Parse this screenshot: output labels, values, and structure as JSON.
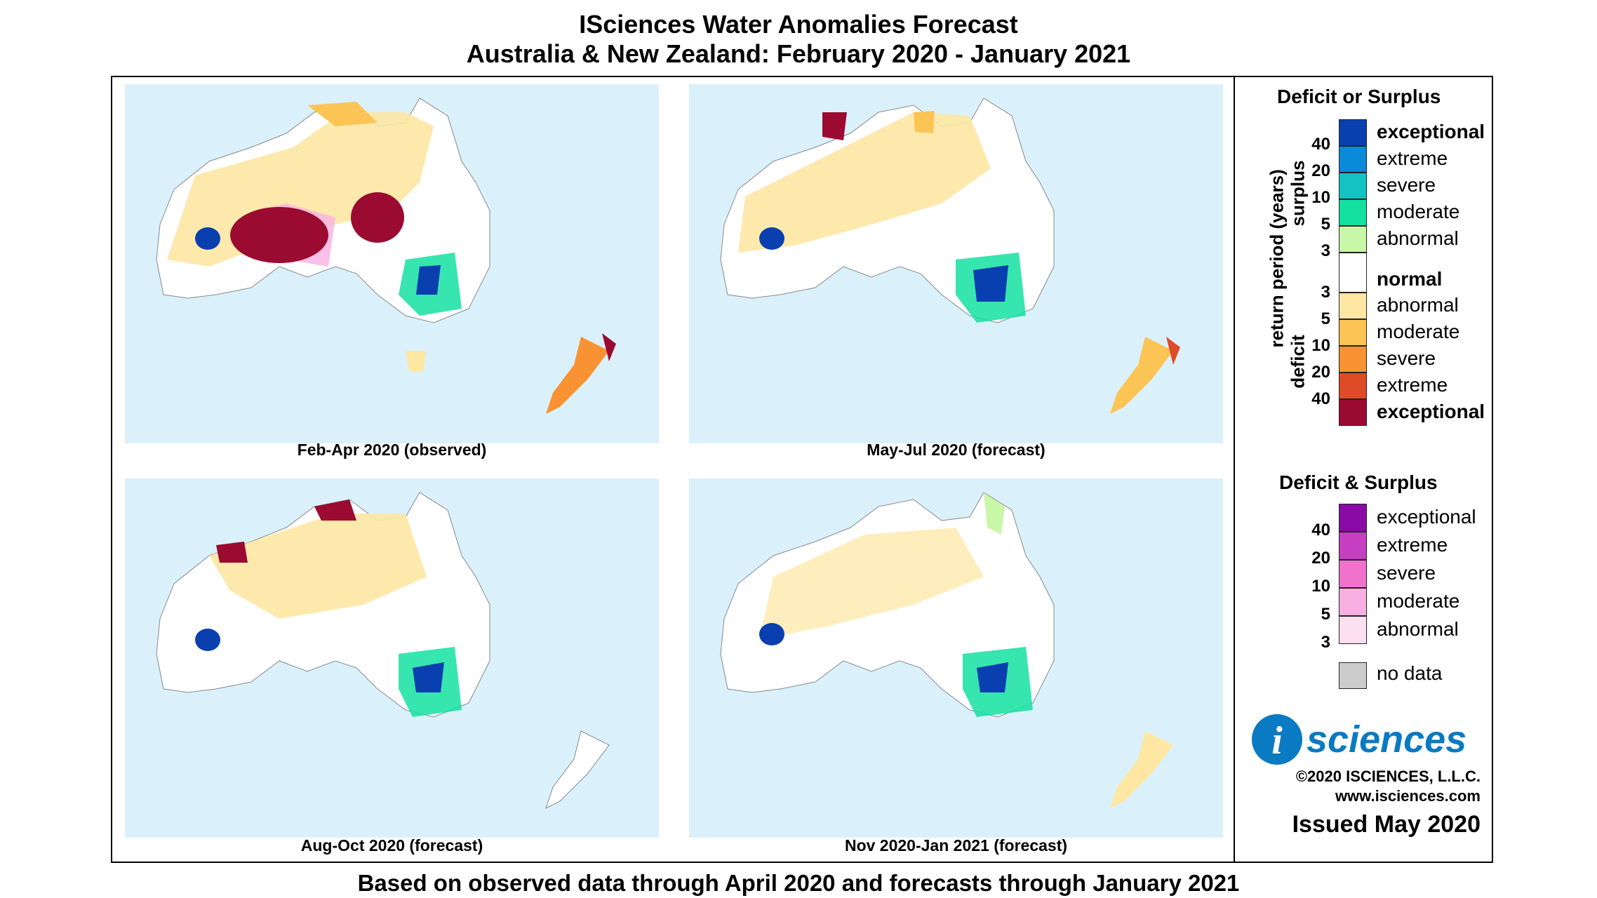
{
  "header": {
    "title_line1": "ISciences Water Anomalies Forecast",
    "title_line2": "Australia & New Zealand: February 2020 - January 2021"
  },
  "panels": [
    {
      "label": "Feb-Apr 2020 (observed)"
    },
    {
      "label": "May-Jul 2020 (forecast)"
    },
    {
      "label": "Aug-Oct 2020 (forecast)"
    },
    {
      "label": "Nov 2020-Jan 2021 (forecast)"
    }
  ],
  "footer": "Based on observed data through April 2020 and forecasts through January 2021",
  "legend": {
    "title1": "Deficit or Surplus",
    "axis_label": "return period (years)",
    "surplus_label": "surplus",
    "deficit_label": "deficit",
    "surplus": [
      {
        "label": "exceptional",
        "color": "#0a3fb0"
      },
      {
        "label": "extreme",
        "color": "#0a8ad8"
      },
      {
        "label": "severe",
        "color": "#13c3c3"
      },
      {
        "label": "moderate",
        "color": "#14e0a0"
      },
      {
        "label": "abnormal",
        "color": "#c9f7a8"
      }
    ],
    "normal_label": "normal",
    "deficit": [
      {
        "label": "abnormal",
        "color": "#fde7a3"
      },
      {
        "label": "moderate",
        "color": "#fbc454"
      },
      {
        "label": "severe",
        "color": "#f89232"
      },
      {
        "label": "extreme",
        "color": "#df4b26"
      },
      {
        "label": "exceptional",
        "color": "#9b0a30"
      }
    ],
    "surplus_ticks": [
      "40",
      "20",
      "10",
      "5",
      "3"
    ],
    "deficit_ticks": [
      "3",
      "5",
      "10",
      "20",
      "40"
    ],
    "title2": "Deficit & Surplus",
    "both": [
      {
        "label": "exceptional",
        "color": "#8a0aa8"
      },
      {
        "label": "extreme",
        "color": "#c53fc0"
      },
      {
        "label": "severe",
        "color": "#f172cc"
      },
      {
        "label": "moderate",
        "color": "#f8b0e3"
      },
      {
        "label": "abnormal",
        "color": "#fde0ef"
      }
    ],
    "both_ticks": [
      "40",
      "20",
      "10",
      "5",
      "3"
    ],
    "nodata_label": "no data",
    "nodata_color": "#cccccc"
  },
  "brand": {
    "logo_text": "sciences",
    "logo_i": "i",
    "copyright": "©2020 ISCIENCES, L.L.C.",
    "website": "www.isciences.com",
    "issued": "Issued May 2020"
  }
}
